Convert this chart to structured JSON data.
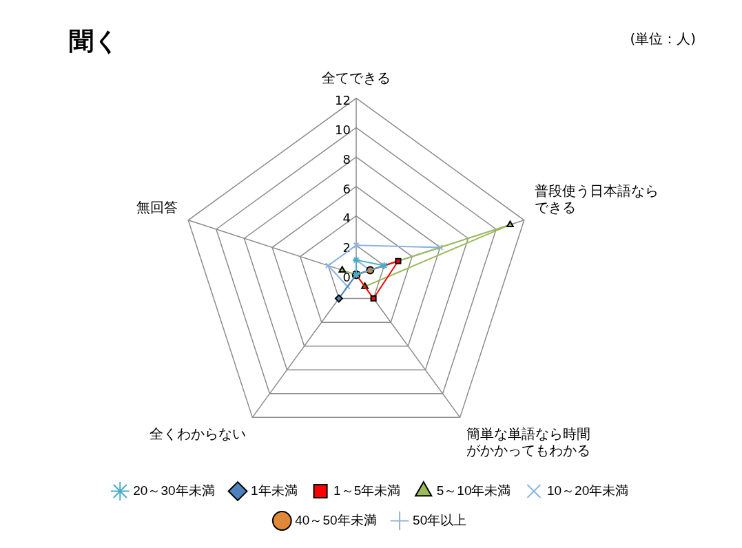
{
  "chart_data": {
    "type": "radar",
    "title": "聞く",
    "annotations": [
      "(単位：人)"
    ],
    "categories": [
      "全てできる",
      "普段使う日本語ならできる",
      "簡単な単語なら時間がかかってもわかる",
      "全くわからない",
      "無回答"
    ],
    "ylim": [
      0,
      12
    ],
    "yticks": [
      0,
      2,
      4,
      6,
      8,
      10,
      12
    ],
    "grid": true,
    "legend": "bottom",
    "series": [
      {
        "name": "20～30年未満",
        "color": "#4bacc6",
        "marker": "star",
        "values": [
          1,
          2,
          0,
          0,
          0
        ]
      },
      {
        "name": "1年未満",
        "color": "#4f81bd",
        "marker": "diamond",
        "values": [
          0,
          0,
          0,
          2,
          0
        ]
      },
      {
        "name": "1～5年未満",
        "color": "#ff0000",
        "marker": "square",
        "values": [
          0,
          3,
          2,
          0,
          0
        ]
      },
      {
        "name": "5～10年未満",
        "color": "#9bbb59",
        "marker": "triangle",
        "values": [
          0,
          11,
          1,
          0,
          1
        ]
      },
      {
        "name": "10～20年未満",
        "color": "#8eb4e3",
        "marker": "cross",
        "values": [
          2,
          6,
          0,
          1,
          2
        ]
      },
      {
        "name": "40～50年未満",
        "color": "#e0883a",
        "marker": "circle",
        "values": [
          0,
          1,
          0,
          0,
          0
        ]
      },
      {
        "name": "50年以上",
        "color": "#95b3d7",
        "marker": "plus",
        "values": [
          1,
          1,
          0,
          0,
          0
        ]
      }
    ]
  }
}
